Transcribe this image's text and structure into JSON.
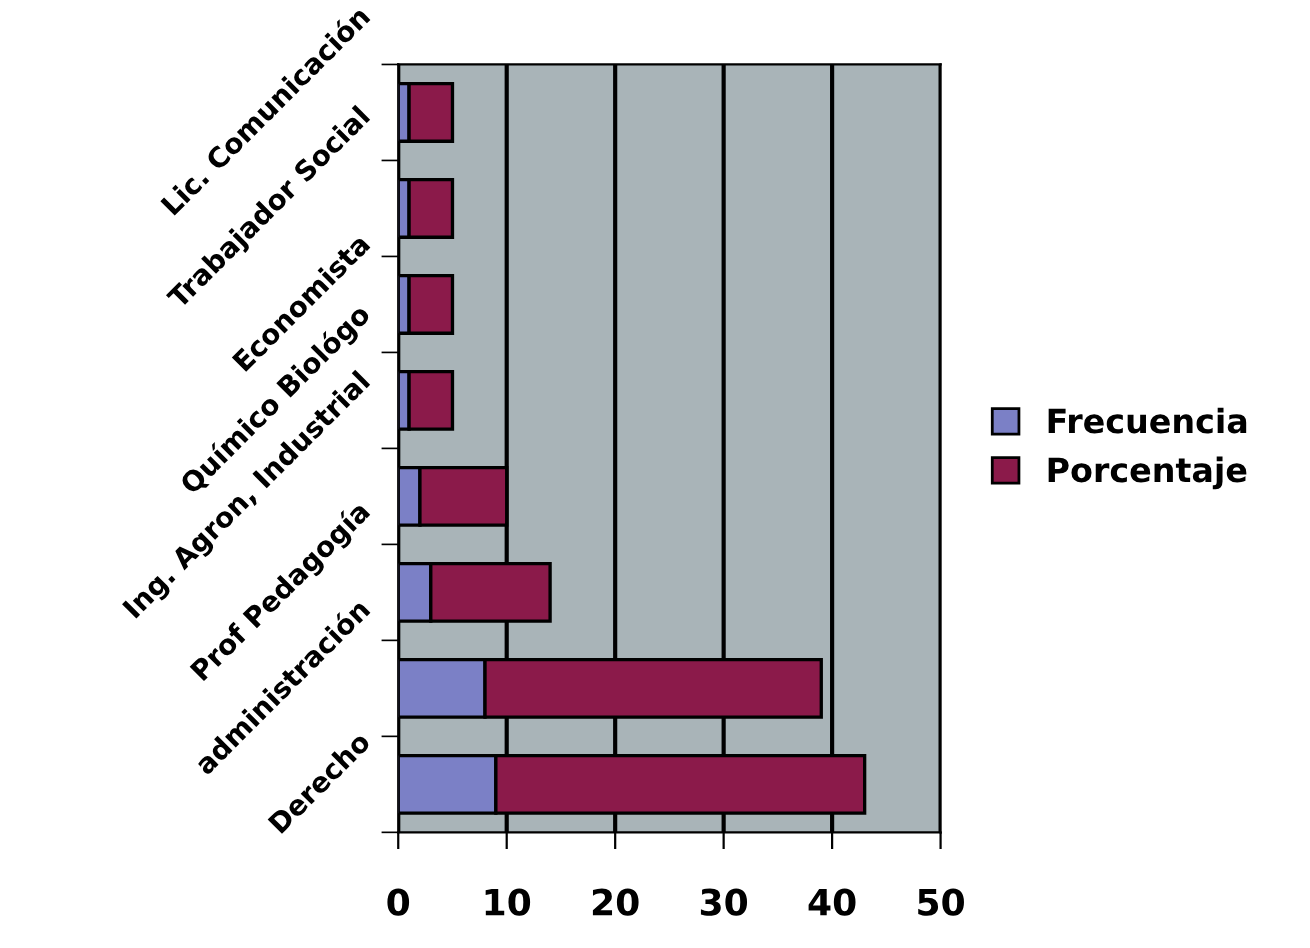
{
  "chart_data": {
    "type": "bar",
    "orientation": "horizontal",
    "stacked": true,
    "categories": [
      "Lic. Comunicación",
      "Trabajador Social",
      "Economista",
      "Químico Biológo",
      "Ing. Agron, Industrial",
      "Prof Pedagogía",
      "administración",
      "Derecho"
    ],
    "series": [
      {
        "name": "Frecuencia",
        "color": "#7b80c6",
        "values": [
          1,
          1,
          1,
          1,
          2,
          3,
          8,
          9
        ]
      },
      {
        "name": "Porcentaje",
        "color": "#8b1a4a",
        "values": [
          4,
          4,
          4,
          4,
          8,
          11,
          31,
          34
        ]
      }
    ],
    "xlim": [
      0,
      50
    ],
    "xticks": [
      0,
      10,
      20,
      30,
      40,
      50
    ],
    "grid": "x",
    "legend": "right"
  }
}
